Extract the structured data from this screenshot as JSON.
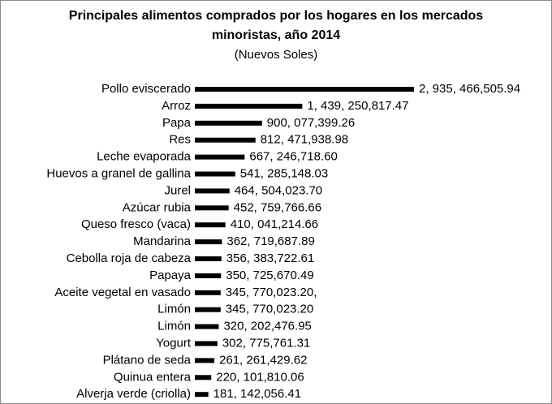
{
  "chart_data": {
    "type": "barh",
    "title": [
      "Principales alimentos comprados por los hogares en los mercados",
      "minoristas, año 2014"
    ],
    "subtitle": "(Nuevos Soles)",
    "color": "#000000",
    "categories": [
      "Pollo eviscerado",
      "Arroz",
      "Papa",
      "Res",
      "Leche evaporada",
      "Huevos a granel de gallina",
      "Jurel",
      "Azúcar rubia",
      "Queso fresco (vaca)",
      "Mandarina",
      "Cebolla roja de cabeza",
      "Papaya",
      "Aceite vegetal en vasado",
      "Limón",
      "Limón",
      "Yogurt",
      "Plátano de seda",
      "Quinua entera",
      "Alverja verde (criolla)"
    ],
    "values": [
      2935466505.94,
      1439250817.47,
      900077399.26,
      812471938.98,
      667246718.6,
      541285148.03,
      464504023.7,
      452759766.66,
      410041214.66,
      362719687.89,
      356383722.61,
      350725670.49,
      345770023.2,
      345770023.2,
      320202476.95,
      302775761.31,
      261261429.62,
      220101810.06,
      181142056.41
    ],
    "value_labels": [
      "2, 935, 466,505.94",
      "1, 439, 250,817.47",
      "900, 077,399.26",
      "812, 471,938.98",
      "667, 246,718.60",
      "541, 285,148.03",
      "464, 504,023.70",
      "452, 759,766.66",
      "410, 041,214.66",
      "362, 719,687.89",
      "356, 383,722.61",
      "350, 725,670.49",
      "345, 770,023.20,",
      "345, 770,023.20",
      "320, 202,476.95",
      "302, 775,761.31",
      "261, 261,429.62",
      "220, 101,810.06",
      "181, 142,056.41"
    ]
  }
}
